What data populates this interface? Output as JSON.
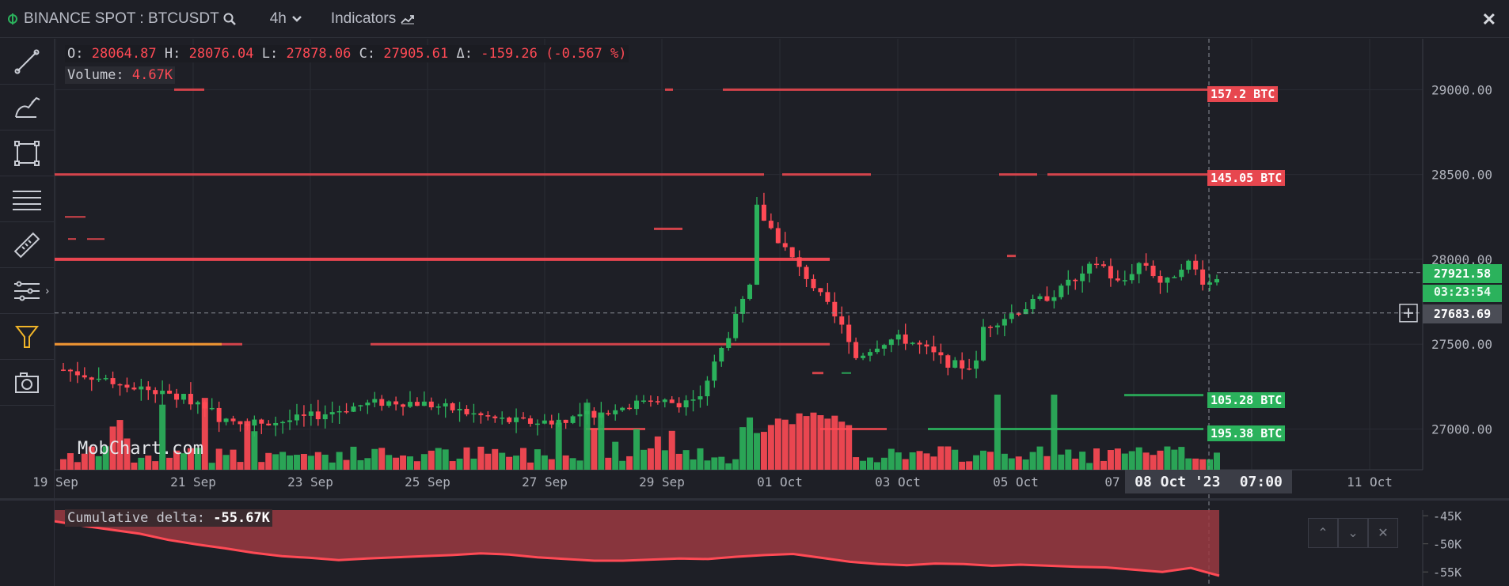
{
  "topbar": {
    "symbol": "BINANCE SPOT : BTCUSDT",
    "interval": "4h",
    "indicators_label": "Indicators",
    "close_label": "✕"
  },
  "toolbar": {
    "tools": [
      "trend-line-icon",
      "brush-icon",
      "rectangle-icon",
      "horizontal-lines-icon",
      "ruler-icon",
      "settings-lines-icon",
      "filter-icon",
      "camera-icon"
    ]
  },
  "ohlc": {
    "o_label": "O:",
    "o": "28064.87",
    "h_label": "H:",
    "h": "28076.04",
    "l_label": "L:",
    "l": "27878.06",
    "c_label": "C:",
    "c": "27905.61",
    "d_label": "Δ:",
    "d": "-159.26 (-0.567 %)"
  },
  "volume": {
    "label": "Volume:",
    "value": "4.67K"
  },
  "watermark": "MobChart.com",
  "cumulative_delta": {
    "label": "Cumulative delta:",
    "value": "-55.67K"
  },
  "levels": [
    {
      "label": "157.2 BTC",
      "color": "red"
    },
    {
      "label": "145.05 BTC",
      "color": "red"
    },
    {
      "label": "105.28 BTC",
      "color": "green"
    },
    {
      "label": "195.38 BTC",
      "color": "green"
    }
  ],
  "price_labels": {
    "last": "27921.58",
    "countdown": "03:23:54",
    "crosshair": "27683.69"
  },
  "crosshair_date": {
    "date": "08 Oct '23",
    "time": "07:00"
  },
  "colors": {
    "up": "#2bb25c",
    "down": "#ff4a55",
    "background": "#1e1f26",
    "grid": "#2a2c34"
  },
  "chart_data": {
    "type": "candlestick",
    "x_tick_labels": [
      "19 Sep",
      "21 Sep",
      "23 Sep",
      "25 Sep",
      "27 Sep",
      "29 Sep",
      "01 Oct",
      "03 Oct",
      "05 Oct",
      "07",
      "11 Oct"
    ],
    "y_tick_labels": [
      "29000.00",
      "28500.00",
      "28000.00",
      "27500.00",
      "27000.00"
    ],
    "ylim": [
      26760,
      29300
    ],
    "y_ticks": [
      29000,
      28500,
      28000,
      27500,
      27000
    ],
    "delta_tick_labels": [
      "-45K",
      "-50K",
      "-55K"
    ],
    "delta_ticks": [
      -45000,
      -50000,
      -55000
    ],
    "delta_ylim": [
      -57500,
      -44000
    ],
    "grid": true,
    "last_close": 27921.58,
    "crosshair_price": 27683.69,
    "candles_note": "approximate reading of the visible 4h candles",
    "closes": [
      27350,
      27100,
      27050,
      27150,
      27360,
      27320,
      27200,
      27100,
      27450,
      27420,
      27100,
      27180,
      27300,
      27200,
      27050,
      27150
    ],
    "delta": [
      -46000,
      -46800,
      -47500,
      -48200,
      -49300,
      -50100,
      -50800,
      -51600,
      -52200,
      -52500,
      -52900,
      -52600,
      -52400,
      -52200,
      -52000,
      -51700,
      -51900,
      -52400,
      -52700,
      -53000,
      -53000,
      -52800,
      -52600,
      -52700,
      -52300,
      -52000,
      -51800,
      -52500,
      -53200,
      -53600,
      -53800,
      -53500,
      -53600,
      -53900,
      -53700,
      -53900,
      -54100,
      -54200,
      -54600,
      -55000,
      -54300,
      -55670
    ]
  }
}
